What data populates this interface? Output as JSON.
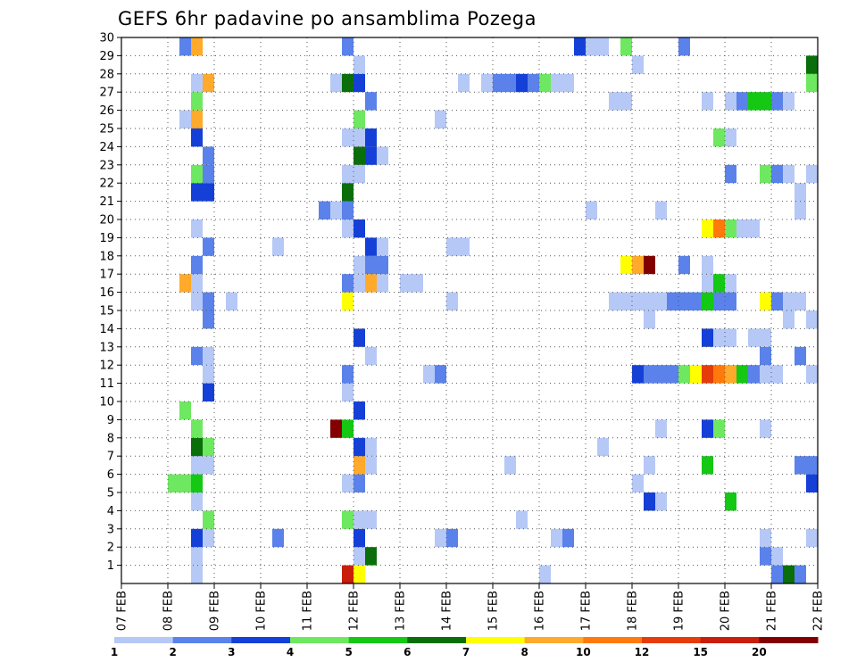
{
  "chart_data": {
    "type": "heatmap",
    "title": "GEFS 6hr padavine po ansamblima Pozega",
    "xlabel": "",
    "ylabel": "",
    "x_tick_labels": [
      "07 FEB",
      "08 FEB",
      "09 FEB",
      "10 FEB",
      "11 FEB",
      "12 FEB",
      "13 FEB",
      "14 FEB",
      "15 FEB",
      "16 FEB",
      "17 FEB",
      "18 FEB",
      "19 FEB",
      "20 FEB",
      "21 FEB",
      "22 FEB"
    ],
    "y_tick_labels": [
      "1",
      "2",
      "3",
      "4",
      "5",
      "6",
      "7",
      "8",
      "9",
      "10",
      "11",
      "12",
      "13",
      "14",
      "15",
      "16",
      "17",
      "18",
      "19",
      "20",
      "21",
      "22",
      "23",
      "24",
      "25",
      "26",
      "27",
      "28",
      "29",
      "30"
    ],
    "xlim_days": [
      "07 FEB",
      "22 FEB"
    ],
    "ylim": [
      0,
      30
    ],
    "grid": true,
    "colorbar": {
      "labels": [
        "1",
        "2",
        "3",
        "4",
        "5",
        "6",
        "7",
        "8",
        "10",
        "12",
        "15",
        "20"
      ],
      "colors": [
        "#b6c8f6",
        "#5a82ea",
        "#1440d8",
        "#6ee860",
        "#14c814",
        "#0a6e0a",
        "#ffff00",
        "#ffaa2a",
        "#ff7a0a",
        "#e63c0a",
        "#c81e0a",
        "#820000"
      ]
    },
    "cells": [
      {
        "m": 0,
        "t": "11 FEB 18Z",
        "c": 10
      },
      {
        "m": 0,
        "t": "12 FEB 00Z",
        "c": 6
      },
      {
        "m": 0,
        "t": "08 FEB 12Z",
        "c": 0
      },
      {
        "m": 0,
        "t": "16 FEB 00Z",
        "c": 0
      },
      {
        "m": 0,
        "t": "21 FEB 00Z",
        "c": 1
      },
      {
        "m": 0,
        "t": "21 FEB 06Z",
        "c": 5
      },
      {
        "m": 0,
        "t": "21 FEB 12Z",
        "c": 1
      },
      {
        "m": 1,
        "t": "08 FEB 12Z",
        "c": 0
      },
      {
        "m": 1,
        "t": "12 FEB 00Z",
        "c": 0
      },
      {
        "m": 1,
        "t": "12 FEB 06Z",
        "c": 5
      },
      {
        "m": 1,
        "t": "20 FEB 18Z",
        "c": 1
      },
      {
        "m": 1,
        "t": "21 FEB 00Z",
        "c": 0
      },
      {
        "m": 2,
        "t": "08 FEB 12Z",
        "c": 2
      },
      {
        "m": 2,
        "t": "08 FEB 18Z",
        "c": 0
      },
      {
        "m": 2,
        "t": "10 FEB 06Z",
        "c": 1
      },
      {
        "m": 2,
        "t": "12 FEB 00Z",
        "c": 2
      },
      {
        "m": 2,
        "t": "13 FEB 18Z",
        "c": 0
      },
      {
        "m": 2,
        "t": "14 FEB 00Z",
        "c": 1
      },
      {
        "m": 2,
        "t": "16 FEB 06Z",
        "c": 0
      },
      {
        "m": 2,
        "t": "16 FEB 12Z",
        "c": 1
      },
      {
        "m": 2,
        "t": "20 FEB 18Z",
        "c": 0
      },
      {
        "m": 2,
        "t": "21 FEB 18Z",
        "c": 0
      },
      {
        "m": 3,
        "t": "08 FEB 18Z",
        "c": 3
      },
      {
        "m": 3,
        "t": "11 FEB 18Z",
        "c": 3
      },
      {
        "m": 3,
        "t": "12 FEB 00Z",
        "c": 0
      },
      {
        "m": 3,
        "t": "12 FEB 06Z",
        "c": 0
      },
      {
        "m": 3,
        "t": "15 FEB 12Z",
        "c": 0
      },
      {
        "m": 4,
        "t": "08 FEB 12Z",
        "c": 0
      },
      {
        "m": 4,
        "t": "18 FEB 06Z",
        "c": 2
      },
      {
        "m": 4,
        "t": "18 FEB 12Z",
        "c": 0
      },
      {
        "m": 4,
        "t": "20 FEB 00Z",
        "c": 4
      },
      {
        "m": 5,
        "t": "08 FEB 00Z",
        "c": 3
      },
      {
        "m": 5,
        "t": "08 FEB 06Z",
        "c": 3
      },
      {
        "m": 5,
        "t": "08 FEB 12Z",
        "c": 4
      },
      {
        "m": 5,
        "t": "11 FEB 18Z",
        "c": 0
      },
      {
        "m": 5,
        "t": "12 FEB 00Z",
        "c": 1
      },
      {
        "m": 5,
        "t": "18 FEB 00Z",
        "c": 0
      },
      {
        "m": 5,
        "t": "21 FEB 18Z",
        "c": 2
      },
      {
        "m": 6,
        "t": "08 FEB 12Z",
        "c": 0
      },
      {
        "m": 6,
        "t": "08 FEB 18Z",
        "c": 0
      },
      {
        "m": 6,
        "t": "12 FEB 00Z",
        "c": 7
      },
      {
        "m": 6,
        "t": "12 FEB 06Z",
        "c": 0
      },
      {
        "m": 6,
        "t": "15 FEB 06Z",
        "c": 0
      },
      {
        "m": 6,
        "t": "18 FEB 06Z",
        "c": 0
      },
      {
        "m": 6,
        "t": "19 FEB 12Z",
        "c": 4
      },
      {
        "m": 6,
        "t": "21 FEB 12Z",
        "c": 1
      },
      {
        "m": 6,
        "t": "21 FEB 18Z",
        "c": 1
      },
      {
        "m": 7,
        "t": "08 FEB 12Z",
        "c": 5
      },
      {
        "m": 7,
        "t": "08 FEB 18Z",
        "c": 3
      },
      {
        "m": 7,
        "t": "12 FEB 00Z",
        "c": 2
      },
      {
        "m": 7,
        "t": "12 FEB 06Z",
        "c": 0
      },
      {
        "m": 7,
        "t": "17 FEB 06Z",
        "c": 0
      },
      {
        "m": 8,
        "t": "08 FEB 12Z",
        "c": 3
      },
      {
        "m": 8,
        "t": "11 FEB 12Z",
        "c": 11
      },
      {
        "m": 8,
        "t": "11 FEB 18Z",
        "c": 4
      },
      {
        "m": 8,
        "t": "18 FEB 12Z",
        "c": 0
      },
      {
        "m": 8,
        "t": "19 FEB 12Z",
        "c": 2
      },
      {
        "m": 8,
        "t": "19 FEB 18Z",
        "c": 3
      },
      {
        "m": 8,
        "t": "20 FEB 18Z",
        "c": 0
      },
      {
        "m": 9,
        "t": "08 FEB 06Z",
        "c": 3
      },
      {
        "m": 9,
        "t": "12 FEB 00Z",
        "c": 2
      },
      {
        "m": 10,
        "t": "08 FEB 18Z",
        "c": 2
      },
      {
        "m": 10,
        "t": "11 FEB 18Z",
        "c": 0
      },
      {
        "m": 11,
        "t": "08 FEB 18Z",
        "c": 0
      },
      {
        "m": 11,
        "t": "11 FEB 18Z",
        "c": 1
      },
      {
        "m": 11,
        "t": "13 FEB 12Z",
        "c": 0
      },
      {
        "m": 11,
        "t": "13 FEB 18Z",
        "c": 1
      },
      {
        "m": 11,
        "t": "18 FEB 00Z",
        "c": 2
      },
      {
        "m": 11,
        "t": "18 FEB 06Z",
        "c": 1
      },
      {
        "m": 11,
        "t": "18 FEB 12Z",
        "c": 1
      },
      {
        "m": 11,
        "t": "18 FEB 18Z",
        "c": 1
      },
      {
        "m": 11,
        "t": "19 FEB 00Z",
        "c": 3
      },
      {
        "m": 11,
        "t": "19 FEB 06Z",
        "c": 6
      },
      {
        "m": 11,
        "t": "19 FEB 12Z",
        "c": 9
      },
      {
        "m": 11,
        "t": "19 FEB 18Z",
        "c": 8
      },
      {
        "m": 11,
        "t": "20 FEB 00Z",
        "c": 7
      },
      {
        "m": 11,
        "t": "20 FEB 06Z",
        "c": 4
      },
      {
        "m": 11,
        "t": "20 FEB 12Z",
        "c": 1
      },
      {
        "m": 11,
        "t": "20 FEB 18Z",
        "c": 0
      },
      {
        "m": 11,
        "t": "21 FEB 00Z",
        "c": 0
      },
      {
        "m": 11,
        "t": "21 FEB 18Z",
        "c": 0
      },
      {
        "m": 12,
        "t": "08 FEB 12Z",
        "c": 1
      },
      {
        "m": 12,
        "t": "08 FEB 18Z",
        "c": 0
      },
      {
        "m": 12,
        "t": "12 FEB 06Z",
        "c": 0
      },
      {
        "m": 12,
        "t": "20 FEB 18Z",
        "c": 1
      },
      {
        "m": 12,
        "t": "21 FEB 12Z",
        "c": 1
      },
      {
        "m": 13,
        "t": "12 FEB 00Z",
        "c": 2
      },
      {
        "m": 13,
        "t": "19 FEB 12Z",
        "c": 2
      },
      {
        "m": 13,
        "t": "19 FEB 18Z",
        "c": 0
      },
      {
        "m": 13,
        "t": "20 FEB 00Z",
        "c": 0
      },
      {
        "m": 13,
        "t": "20 FEB 12Z",
        "c": 0
      },
      {
        "m": 13,
        "t": "20 FEB 18Z",
        "c": 0
      },
      {
        "m": 14,
        "t": "08 FEB 18Z",
        "c": 1
      },
      {
        "m": 14,
        "t": "18 FEB 06Z",
        "c": 0
      },
      {
        "m": 14,
        "t": "21 FEB 06Z",
        "c": 0
      },
      {
        "m": 14,
        "t": "21 FEB 18Z",
        "c": 0
      },
      {
        "m": 15,
        "t": "08 FEB 12Z",
        "c": 0
      },
      {
        "m": 15,
        "t": "08 FEB 18Z",
        "c": 1
      },
      {
        "m": 15,
        "t": "09 FEB 06Z",
        "c": 0
      },
      {
        "m": 15,
        "t": "11 FEB 18Z",
        "c": 6
      },
      {
        "m": 15,
        "t": "14 FEB 00Z",
        "c": 0
      },
      {
        "m": 15,
        "t": "17 FEB 12Z",
        "c": 0
      },
      {
        "m": 15,
        "t": "17 FEB 18Z",
        "c": 0
      },
      {
        "m": 15,
        "t": "18 FEB 00Z",
        "c": 0
      },
      {
        "m": 15,
        "t": "18 FEB 06Z",
        "c": 0
      },
      {
        "m": 15,
        "t": "18 FEB 12Z",
        "c": 0
      },
      {
        "m": 15,
        "t": "18 FEB 18Z",
        "c": 1
      },
      {
        "m": 15,
        "t": "19 FEB 00Z",
        "c": 1
      },
      {
        "m": 15,
        "t": "19 FEB 06Z",
        "c": 1
      },
      {
        "m": 15,
        "t": "19 FEB 12Z",
        "c": 4
      },
      {
        "m": 15,
        "t": "19 FEB 18Z",
        "c": 1
      },
      {
        "m": 15,
        "t": "20 FEB 00Z",
        "c": 1
      },
      {
        "m": 15,
        "t": "20 FEB 18Z",
        "c": 6
      },
      {
        "m": 15,
        "t": "21 FEB 00Z",
        "c": 1
      },
      {
        "m": 15,
        "t": "21 FEB 06Z",
        "c": 0
      },
      {
        "m": 15,
        "t": "21 FEB 12Z",
        "c": 0
      },
      {
        "m": 16,
        "t": "08 FEB 06Z",
        "c": 7
      },
      {
        "m": 16,
        "t": "08 FEB 12Z",
        "c": 0
      },
      {
        "m": 16,
        "t": "11 FEB 18Z",
        "c": 1
      },
      {
        "m": 16,
        "t": "12 FEB 00Z",
        "c": 0
      },
      {
        "m": 16,
        "t": "12 FEB 06Z",
        "c": 7
      },
      {
        "m": 16,
        "t": "12 FEB 12Z",
        "c": 0
      },
      {
        "m": 16,
        "t": "13 FEB 00Z",
        "c": 0
      },
      {
        "m": 16,
        "t": "13 FEB 06Z",
        "c": 0
      },
      {
        "m": 16,
        "t": "19 FEB 12Z",
        "c": 0
      },
      {
        "m": 16,
        "t": "19 FEB 18Z",
        "c": 4
      },
      {
        "m": 16,
        "t": "20 FEB 00Z",
        "c": 0
      },
      {
        "m": 17,
        "t": "08 FEB 12Z",
        "c": 1
      },
      {
        "m": 17,
        "t": "12 FEB 00Z",
        "c": 0
      },
      {
        "m": 17,
        "t": "12 FEB 06Z",
        "c": 1
      },
      {
        "m": 17,
        "t": "12 FEB 12Z",
        "c": 1
      },
      {
        "m": 17,
        "t": "17 FEB 18Z",
        "c": 6
      },
      {
        "m": 17,
        "t": "18 FEB 00Z",
        "c": 7
      },
      {
        "m": 17,
        "t": "18 FEB 06Z",
        "c": 11
      },
      {
        "m": 17,
        "t": "19 FEB 00Z",
        "c": 1
      },
      {
        "m": 17,
        "t": "19 FEB 12Z",
        "c": 0
      },
      {
        "m": 18,
        "t": "08 FEB 18Z",
        "c": 1
      },
      {
        "m": 18,
        "t": "10 FEB 06Z",
        "c": 0
      },
      {
        "m": 18,
        "t": "12 FEB 06Z",
        "c": 2
      },
      {
        "m": 18,
        "t": "12 FEB 12Z",
        "c": 0
      },
      {
        "m": 18,
        "t": "14 FEB 00Z",
        "c": 0
      },
      {
        "m": 18,
        "t": "14 FEB 06Z",
        "c": 0
      },
      {
        "m": 19,
        "t": "08 FEB 12Z",
        "c": 0
      },
      {
        "m": 19,
        "t": "11 FEB 18Z",
        "c": 0
      },
      {
        "m": 19,
        "t": "12 FEB 00Z",
        "c": 2
      },
      {
        "m": 19,
        "t": "19 FEB 12Z",
        "c": 6
      },
      {
        "m": 19,
        "t": "19 FEB 18Z",
        "c": 8
      },
      {
        "m": 19,
        "t": "20 FEB 00Z",
        "c": 3
      },
      {
        "m": 19,
        "t": "20 FEB 06Z",
        "c": 0
      },
      {
        "m": 19,
        "t": "20 FEB 12Z",
        "c": 0
      },
      {
        "m": 20,
        "t": "11 FEB 06Z",
        "c": 1
      },
      {
        "m": 20,
        "t": "11 FEB 12Z",
        "c": 0
      },
      {
        "m": 20,
        "t": "11 FEB 18Z",
        "c": 1
      },
      {
        "m": 20,
        "t": "17 FEB 00Z",
        "c": 0
      },
      {
        "m": 20,
        "t": "18 FEB 12Z",
        "c": 0
      },
      {
        "m": 20,
        "t": "21 FEB 12Z",
        "c": 0
      },
      {
        "m": 21,
        "t": "08 FEB 12Z",
        "c": 2
      },
      {
        "m": 21,
        "t": "08 FEB 18Z",
        "c": 2
      },
      {
        "m": 21,
        "t": "11 FEB 18Z",
        "c": 5
      },
      {
        "m": 21,
        "t": "21 FEB 12Z",
        "c": 0
      },
      {
        "m": 22,
        "t": "08 FEB 12Z",
        "c": 3
      },
      {
        "m": 22,
        "t": "08 FEB 18Z",
        "c": 1
      },
      {
        "m": 22,
        "t": "11 FEB 18Z",
        "c": 0
      },
      {
        "m": 22,
        "t": "12 FEB 00Z",
        "c": 0
      },
      {
        "m": 22,
        "t": "20 FEB 00Z",
        "c": 1
      },
      {
        "m": 22,
        "t": "20 FEB 18Z",
        "c": 3
      },
      {
        "m": 22,
        "t": "21 FEB 00Z",
        "c": 1
      },
      {
        "m": 22,
        "t": "21 FEB 06Z",
        "c": 0
      },
      {
        "m": 22,
        "t": "21 FEB 18Z",
        "c": 0
      },
      {
        "m": 23,
        "t": "08 FEB 18Z",
        "c": 1
      },
      {
        "m": 23,
        "t": "12 FEB 00Z",
        "c": 5
      },
      {
        "m": 23,
        "t": "12 FEB 06Z",
        "c": 2
      },
      {
        "m": 23,
        "t": "12 FEB 12Z",
        "c": 0
      },
      {
        "m": 24,
        "t": "08 FEB 12Z",
        "c": 2
      },
      {
        "m": 24,
        "t": "11 FEB 18Z",
        "c": 0
      },
      {
        "m": 24,
        "t": "12 FEB 00Z",
        "c": 0
      },
      {
        "m": 24,
        "t": "12 FEB 06Z",
        "c": 2
      },
      {
        "m": 24,
        "t": "19 FEB 18Z",
        "c": 3
      },
      {
        "m": 24,
        "t": "20 FEB 00Z",
        "c": 0
      },
      {
        "m": 25,
        "t": "08 FEB 06Z",
        "c": 0
      },
      {
        "m": 25,
        "t": "08 FEB 12Z",
        "c": 7
      },
      {
        "m": 25,
        "t": "12 FEB 00Z",
        "c": 3
      },
      {
        "m": 25,
        "t": "13 FEB 18Z",
        "c": 0
      },
      {
        "m": 26,
        "t": "08 FEB 12Z",
        "c": 3
      },
      {
        "m": 26,
        "t": "12 FEB 06Z",
        "c": 1
      },
      {
        "m": 26,
        "t": "17 FEB 12Z",
        "c": 0
      },
      {
        "m": 26,
        "t": "17 FEB 18Z",
        "c": 0
      },
      {
        "m": 26,
        "t": "19 FEB 12Z",
        "c": 0
      },
      {
        "m": 26,
        "t": "20 FEB 00Z",
        "c": 0
      },
      {
        "m": 26,
        "t": "20 FEB 06Z",
        "c": 1
      },
      {
        "m": 26,
        "t": "20 FEB 12Z",
        "c": 4
      },
      {
        "m": 26,
        "t": "20 FEB 18Z",
        "c": 4
      },
      {
        "m": 26,
        "t": "21 FEB 00Z",
        "c": 1
      },
      {
        "m": 26,
        "t": "21 FEB 06Z",
        "c": 0
      },
      {
        "m": 27,
        "t": "08 FEB 12Z",
        "c": 0
      },
      {
        "m": 27,
        "t": "08 FEB 18Z",
        "c": 7
      },
      {
        "m": 27,
        "t": "11 FEB 12Z",
        "c": 0
      },
      {
        "m": 27,
        "t": "11 FEB 18Z",
        "c": 5
      },
      {
        "m": 27,
        "t": "12 FEB 00Z",
        "c": 2
      },
      {
        "m": 27,
        "t": "14 FEB 06Z",
        "c": 0
      },
      {
        "m": 27,
        "t": "14 FEB 18Z",
        "c": 0
      },
      {
        "m": 27,
        "t": "15 FEB 00Z",
        "c": 1
      },
      {
        "m": 27,
        "t": "15 FEB 06Z",
        "c": 1
      },
      {
        "m": 27,
        "t": "15 FEB 12Z",
        "c": 2
      },
      {
        "m": 27,
        "t": "15 FEB 18Z",
        "c": 1
      },
      {
        "m": 27,
        "t": "16 FEB 00Z",
        "c": 3
      },
      {
        "m": 27,
        "t": "16 FEB 06Z",
        "c": 0
      },
      {
        "m": 27,
        "t": "16 FEB 12Z",
        "c": 0
      },
      {
        "m": 27,
        "t": "21 FEB 18Z",
        "c": 3
      },
      {
        "m": 28,
        "t": "12 FEB 00Z",
        "c": 0
      },
      {
        "m": 28,
        "t": "18 FEB 00Z",
        "c": 0
      },
      {
        "m": 28,
        "t": "21 FEB 18Z",
        "c": 5
      },
      {
        "m": 29,
        "t": "08 FEB 06Z",
        "c": 1
      },
      {
        "m": 29,
        "t": "08 FEB 12Z",
        "c": 7
      },
      {
        "m": 29,
        "t": "11 FEB 18Z",
        "c": 1
      },
      {
        "m": 29,
        "t": "16 FEB 18Z",
        "c": 2
      },
      {
        "m": 29,
        "t": "17 FEB 00Z",
        "c": 0
      },
      {
        "m": 29,
        "t": "17 FEB 06Z",
        "c": 0
      },
      {
        "m": 29,
        "t": "17 FEB 18Z",
        "c": 3
      },
      {
        "m": 29,
        "t": "19 FEB 00Z",
        "c": 1
      }
    ]
  }
}
